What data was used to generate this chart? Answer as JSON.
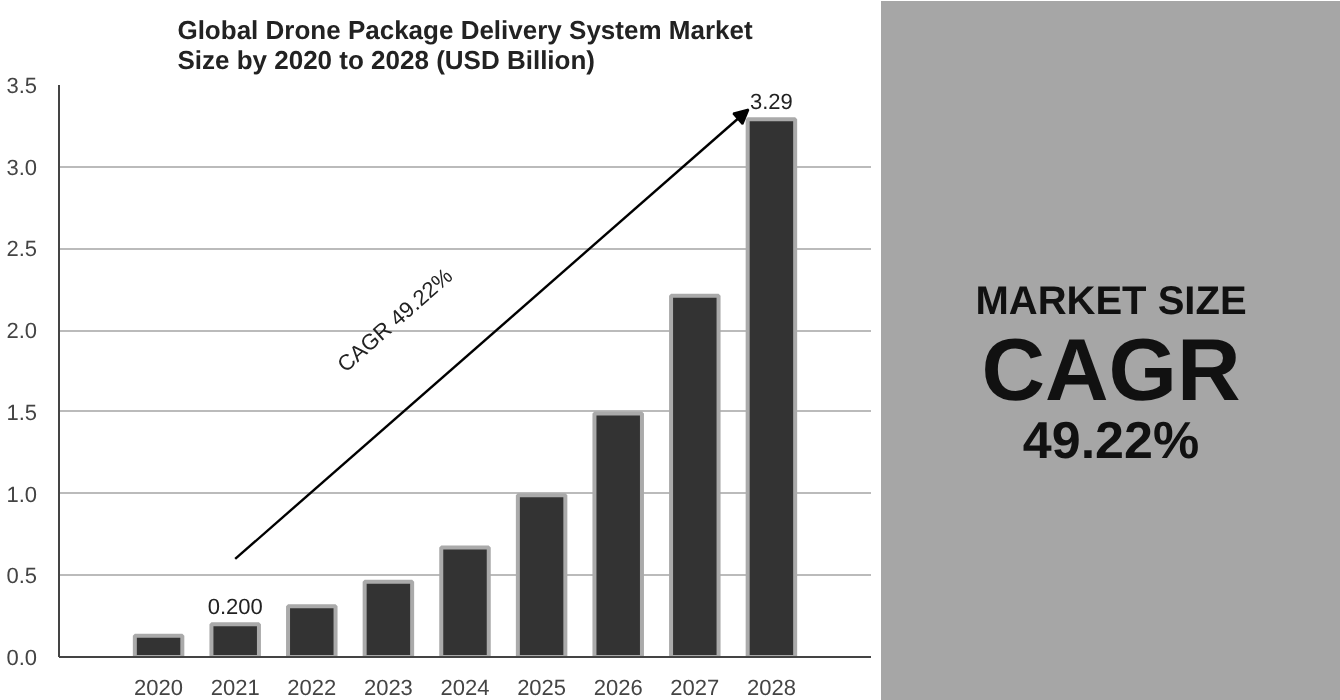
{
  "chart_data": [
    {
      "type": "bar",
      "title": "Global Drone Package Delivery System Market\nSize by 2020 to 2028 (USD Billion)",
      "categories": [
        "2020",
        "2021",
        "2022",
        "2023",
        "2024",
        "2025",
        "2026",
        "2027",
        "2028"
      ],
      "values": [
        0.13,
        0.2,
        0.31,
        0.46,
        0.67,
        0.99,
        1.49,
        2.21,
        3.29
      ],
      "value_labels": [
        null,
        "0.200",
        null,
        null,
        null,
        null,
        null,
        null,
        "3.29"
      ],
      "color": "#333333",
      "ylim": [
        0,
        3.5
      ],
      "yticks": [
        {
          "value": 0,
          "label": "0.0"
        },
        0.5,
        {
          "value": 1,
          "label": "1.0"
        },
        1.5,
        {
          "value": 2,
          "label": "2.0"
        },
        2.5,
        {
          "value": 3,
          "label": "3.0"
        },
        3.5
      ],
      "grid": "y",
      "annotations": [
        "CAGR 49.22%"
      ]
    },
    {
      "type": "other",
      "annotations": [
        "MARKET SIZE",
        "CAGR",
        "49.22%"
      ]
    }
  ]
}
